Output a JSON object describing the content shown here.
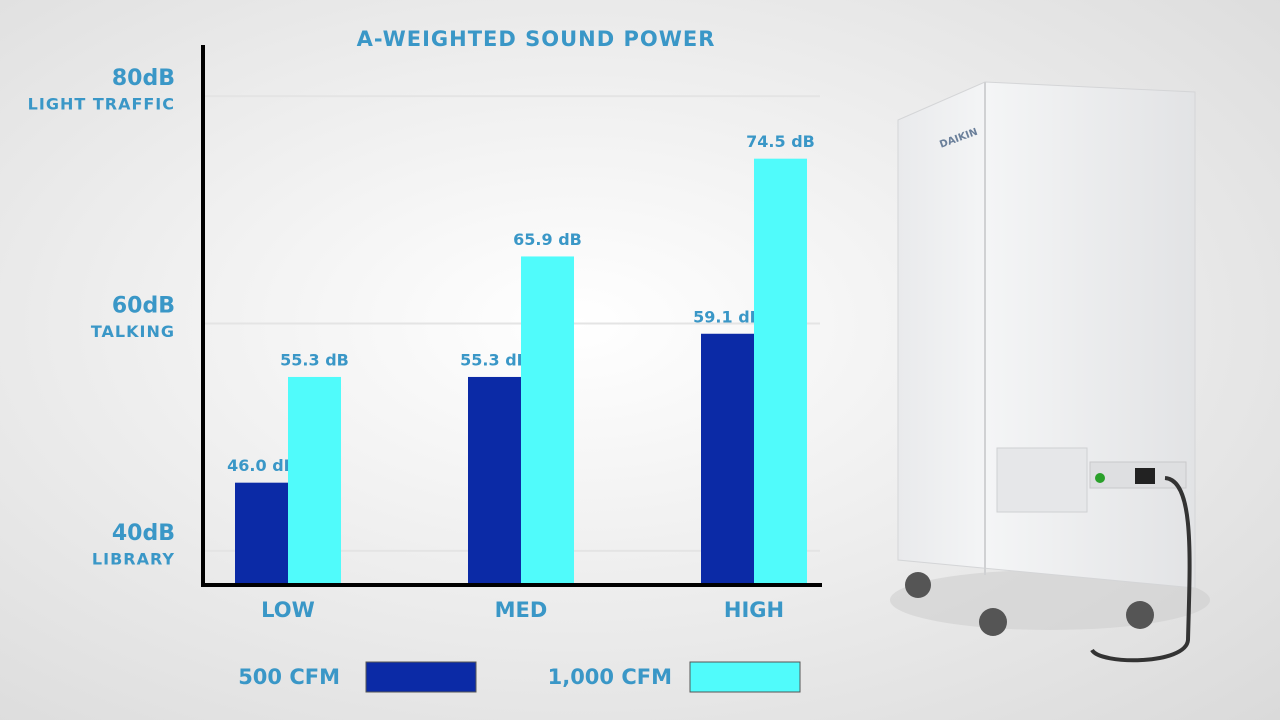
{
  "chart_data": {
    "type": "bar",
    "title": "A-WEIGHTED SOUND POWER",
    "categories": [
      "LOW",
      "MED",
      "HIGH"
    ],
    "series": [
      {
        "name": "500 CFM",
        "color": "#0b2aa6",
        "values": [
          46.0,
          55.3,
          59.1
        ],
        "value_labels": [
          "46.0 dB",
          "55.3 dB",
          "59.1 dB"
        ]
      },
      {
        "name": "1,000 CFM",
        "color": "#50fbfb",
        "values": [
          55.3,
          65.9,
          74.5
        ],
        "value_labels": [
          "55.3 dB",
          "65.9 dB",
          "74.5 dB"
        ]
      }
    ],
    "ylim": [
      37,
      84.5
    ],
    "yticks": [
      {
        "value": 40,
        "label": "40dB"
      },
      {
        "value": 60,
        "label": "60dB"
      },
      {
        "value": 80,
        "label": "80dB"
      }
    ],
    "ytick_notes": [
      "LIBRARY",
      "TALKING",
      "LIGHT TRAFFIC"
    ],
    "grid": true,
    "legend": "bottom"
  },
  "device_logo": "DAIKIN"
}
